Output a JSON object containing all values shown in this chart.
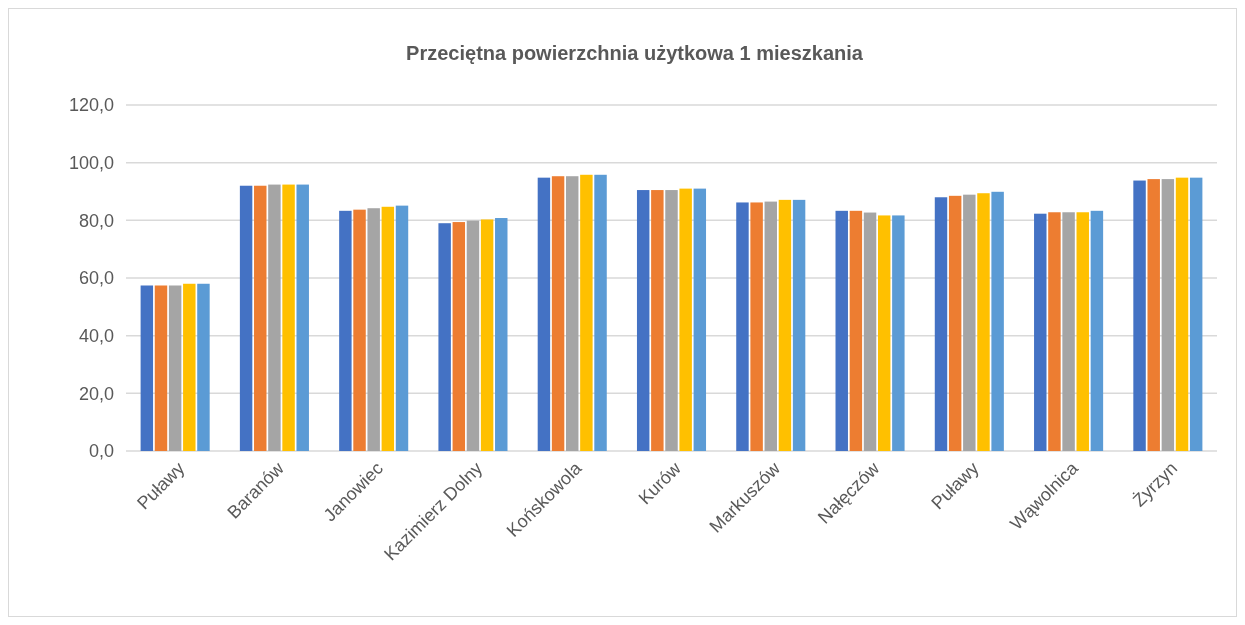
{
  "chart_data": {
    "type": "bar",
    "title": "Przeciętna powierzchnia użytkowa 1 mieszkania",
    "categories": [
      "Puławy",
      "Baranów",
      "Janowiec",
      "Kazimierz Dolny",
      "Końskowola",
      "Kurów",
      "Markuszów",
      "Nałęczów",
      "Puławy",
      "Wąwolnica",
      "Żyrzyn"
    ],
    "series": [
      {
        "color": "#4472c4",
        "values": [
          57.4,
          92.0,
          83.3,
          79.0,
          94.8,
          90.5,
          86.2,
          83.3,
          88.0,
          82.3,
          93.8
        ]
      },
      {
        "color": "#ed7d31",
        "values": [
          57.4,
          92.0,
          83.7,
          79.4,
          95.3,
          90.5,
          86.2,
          83.3,
          88.5,
          82.8,
          94.3
        ]
      },
      {
        "color": "#a5a5a5",
        "values": [
          57.4,
          92.4,
          84.2,
          79.9,
          95.3,
          90.5,
          86.5,
          82.7,
          88.9,
          82.8,
          94.3
        ]
      },
      {
        "color": "#ffc000",
        "values": [
          58.0,
          92.4,
          84.7,
          80.3,
          95.8,
          91.0,
          87.1,
          81.7,
          89.4,
          82.8,
          94.8
        ]
      },
      {
        "color": "#5b9bd5",
        "values": [
          58.0,
          92.4,
          85.1,
          80.8,
          95.8,
          91.0,
          87.1,
          81.7,
          89.9,
          83.3,
          94.8
        ]
      }
    ],
    "ylim": [
      0,
      120
    ],
    "yticks": [
      {
        "value": 0,
        "label": "0,0"
      },
      {
        "value": 20,
        "label": "20,0"
      },
      {
        "value": 40,
        "label": "40,0"
      },
      {
        "value": 60,
        "label": "60,0"
      },
      {
        "value": 80,
        "label": "80,0"
      },
      {
        "value": 100,
        "label": "100,0"
      },
      {
        "value": 120,
        "label": "120,0"
      }
    ],
    "grid": "y"
  }
}
